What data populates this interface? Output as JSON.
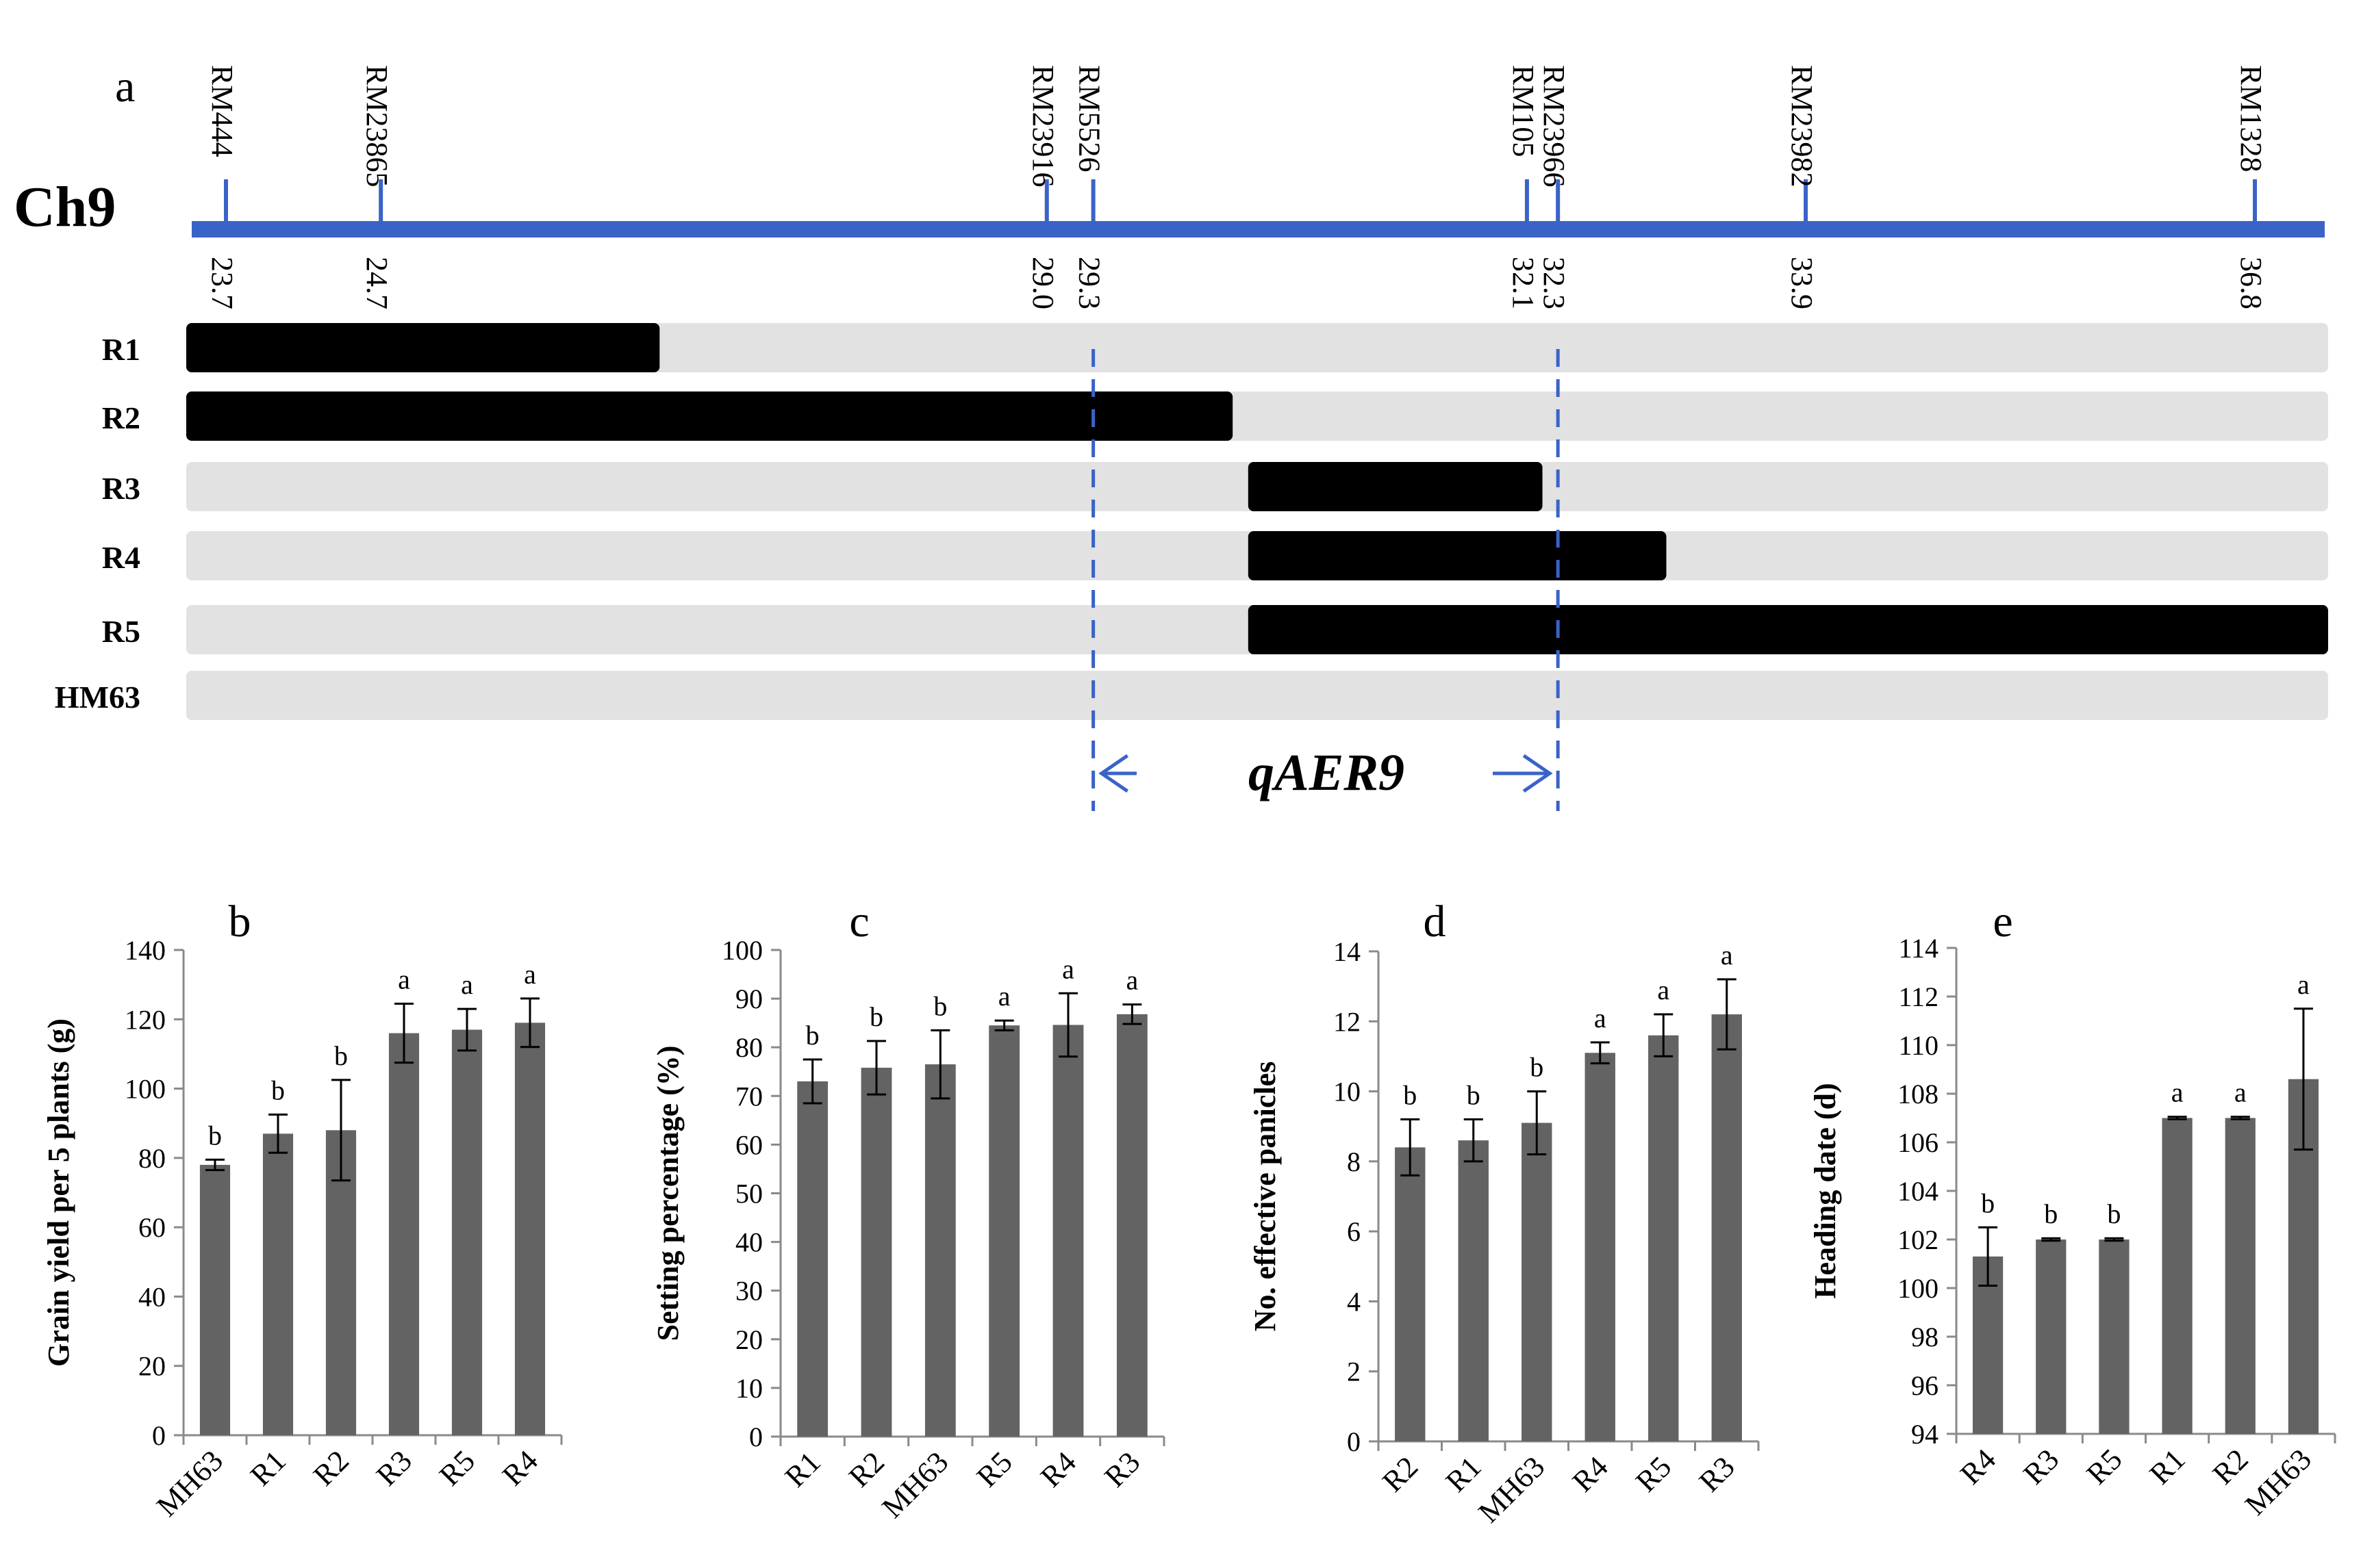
{
  "colors": {
    "chromosome": "#3A63C8",
    "introgression": "#000000",
    "background_segment": "#E2E2E2",
    "bar": "#636363",
    "text": "#000000"
  },
  "panel_a": {
    "label": "a",
    "chromosome_label": "Ch9",
    "axis_range_mb": [
      23.7,
      36.8
    ],
    "markers": [
      {
        "name": "RM444",
        "pos": 23.7,
        "pos_label": "23.7"
      },
      {
        "name": "RM23865",
        "pos": 24.7,
        "pos_label": "24.7"
      },
      {
        "name": "RM23916",
        "pos": 29.0,
        "pos_label": "29.0"
      },
      {
        "name": "RM5526",
        "pos": 29.3,
        "pos_label": "29.3"
      },
      {
        "name": "RM105",
        "pos": 32.1,
        "pos_label": "32.1"
      },
      {
        "name": "RM23966",
        "pos": 32.3,
        "pos_label": "32.3"
      },
      {
        "name": "RM23982",
        "pos": 33.9,
        "pos_label": "33.9"
      },
      {
        "name": "RM1328",
        "pos": 36.8,
        "pos_label": "36.8"
      }
    ],
    "lines": [
      {
        "name": "R1",
        "introgression": [
          23.7,
          26.5
        ]
      },
      {
        "name": "R2",
        "introgression": [
          23.7,
          30.2
        ]
      },
      {
        "name": "R3",
        "introgression": [
          30.3,
          32.2
        ]
      },
      {
        "name": "R4",
        "introgression": [
          30.3,
          33.0
        ]
      },
      {
        "name": "R5",
        "introgression": [
          30.3,
          36.8
        ]
      },
      {
        "name": "HM63",
        "introgression": null
      }
    ],
    "qtl": {
      "name": "qAER9",
      "interval": [
        29.3,
        32.3
      ]
    }
  },
  "chart_data": [
    {
      "panel": "b",
      "type": "bar",
      "title": "b",
      "xlabel": "",
      "ylabel": "Grain yield per 5 plants (g)",
      "ylim": [
        0,
        140
      ],
      "ytick_step": 20,
      "categories": [
        "MH63",
        "R1",
        "R2",
        "R3",
        "R5",
        "R4"
      ],
      "values": [
        78,
        87,
        88,
        116,
        117,
        119
      ],
      "errors": [
        1.5,
        5.5,
        14.5,
        8.5,
        6,
        7
      ],
      "letters": [
        "b",
        "b",
        "b",
        "a",
        "a",
        "a"
      ]
    },
    {
      "panel": "c",
      "type": "bar",
      "title": "c",
      "xlabel": "",
      "ylabel": "Setting percentage (%)",
      "ylim": [
        0,
        100
      ],
      "ytick_step": 10,
      "categories": [
        "R1",
        "R2",
        "MH63",
        "R5",
        "R4",
        "R3"
      ],
      "values": [
        73,
        75.8,
        76.5,
        84.5,
        84.6,
        86.8
      ],
      "errors": [
        4.5,
        5.5,
        7,
        1,
        6.5,
        2
      ],
      "letters": [
        "b",
        "b",
        "b",
        "a",
        "a",
        "a"
      ]
    },
    {
      "panel": "d",
      "type": "bar",
      "title": "d",
      "xlabel": "",
      "ylabel": "No. effective panicles",
      "ylim": [
        0,
        14
      ],
      "ytick_step": 2,
      "categories": [
        "R2",
        "R1",
        "MH63",
        "R4",
        "R5",
        "R3"
      ],
      "values": [
        8.4,
        8.6,
        9.1,
        11.1,
        11.6,
        12.2
      ],
      "errors": [
        0.8,
        0.6,
        0.9,
        0.3,
        0.6,
        1.0
      ],
      "letters": [
        "b",
        "b",
        "b",
        "a",
        "a",
        "a"
      ]
    },
    {
      "panel": "e",
      "type": "bar",
      "title": "e",
      "xlabel": "",
      "ylabel": "Heading date (d)",
      "ylim": [
        94,
        114
      ],
      "ytick_step": 2,
      "categories": [
        "R4",
        "R3",
        "R5",
        "R1",
        "R2",
        "MH63"
      ],
      "values": [
        101.3,
        102,
        102,
        107,
        107,
        108.6
      ],
      "errors": [
        1.2,
        0.05,
        0.05,
        0.05,
        0.05,
        2.9
      ],
      "letters": [
        "b",
        "b",
        "b",
        "a",
        "a",
        "a"
      ]
    }
  ]
}
